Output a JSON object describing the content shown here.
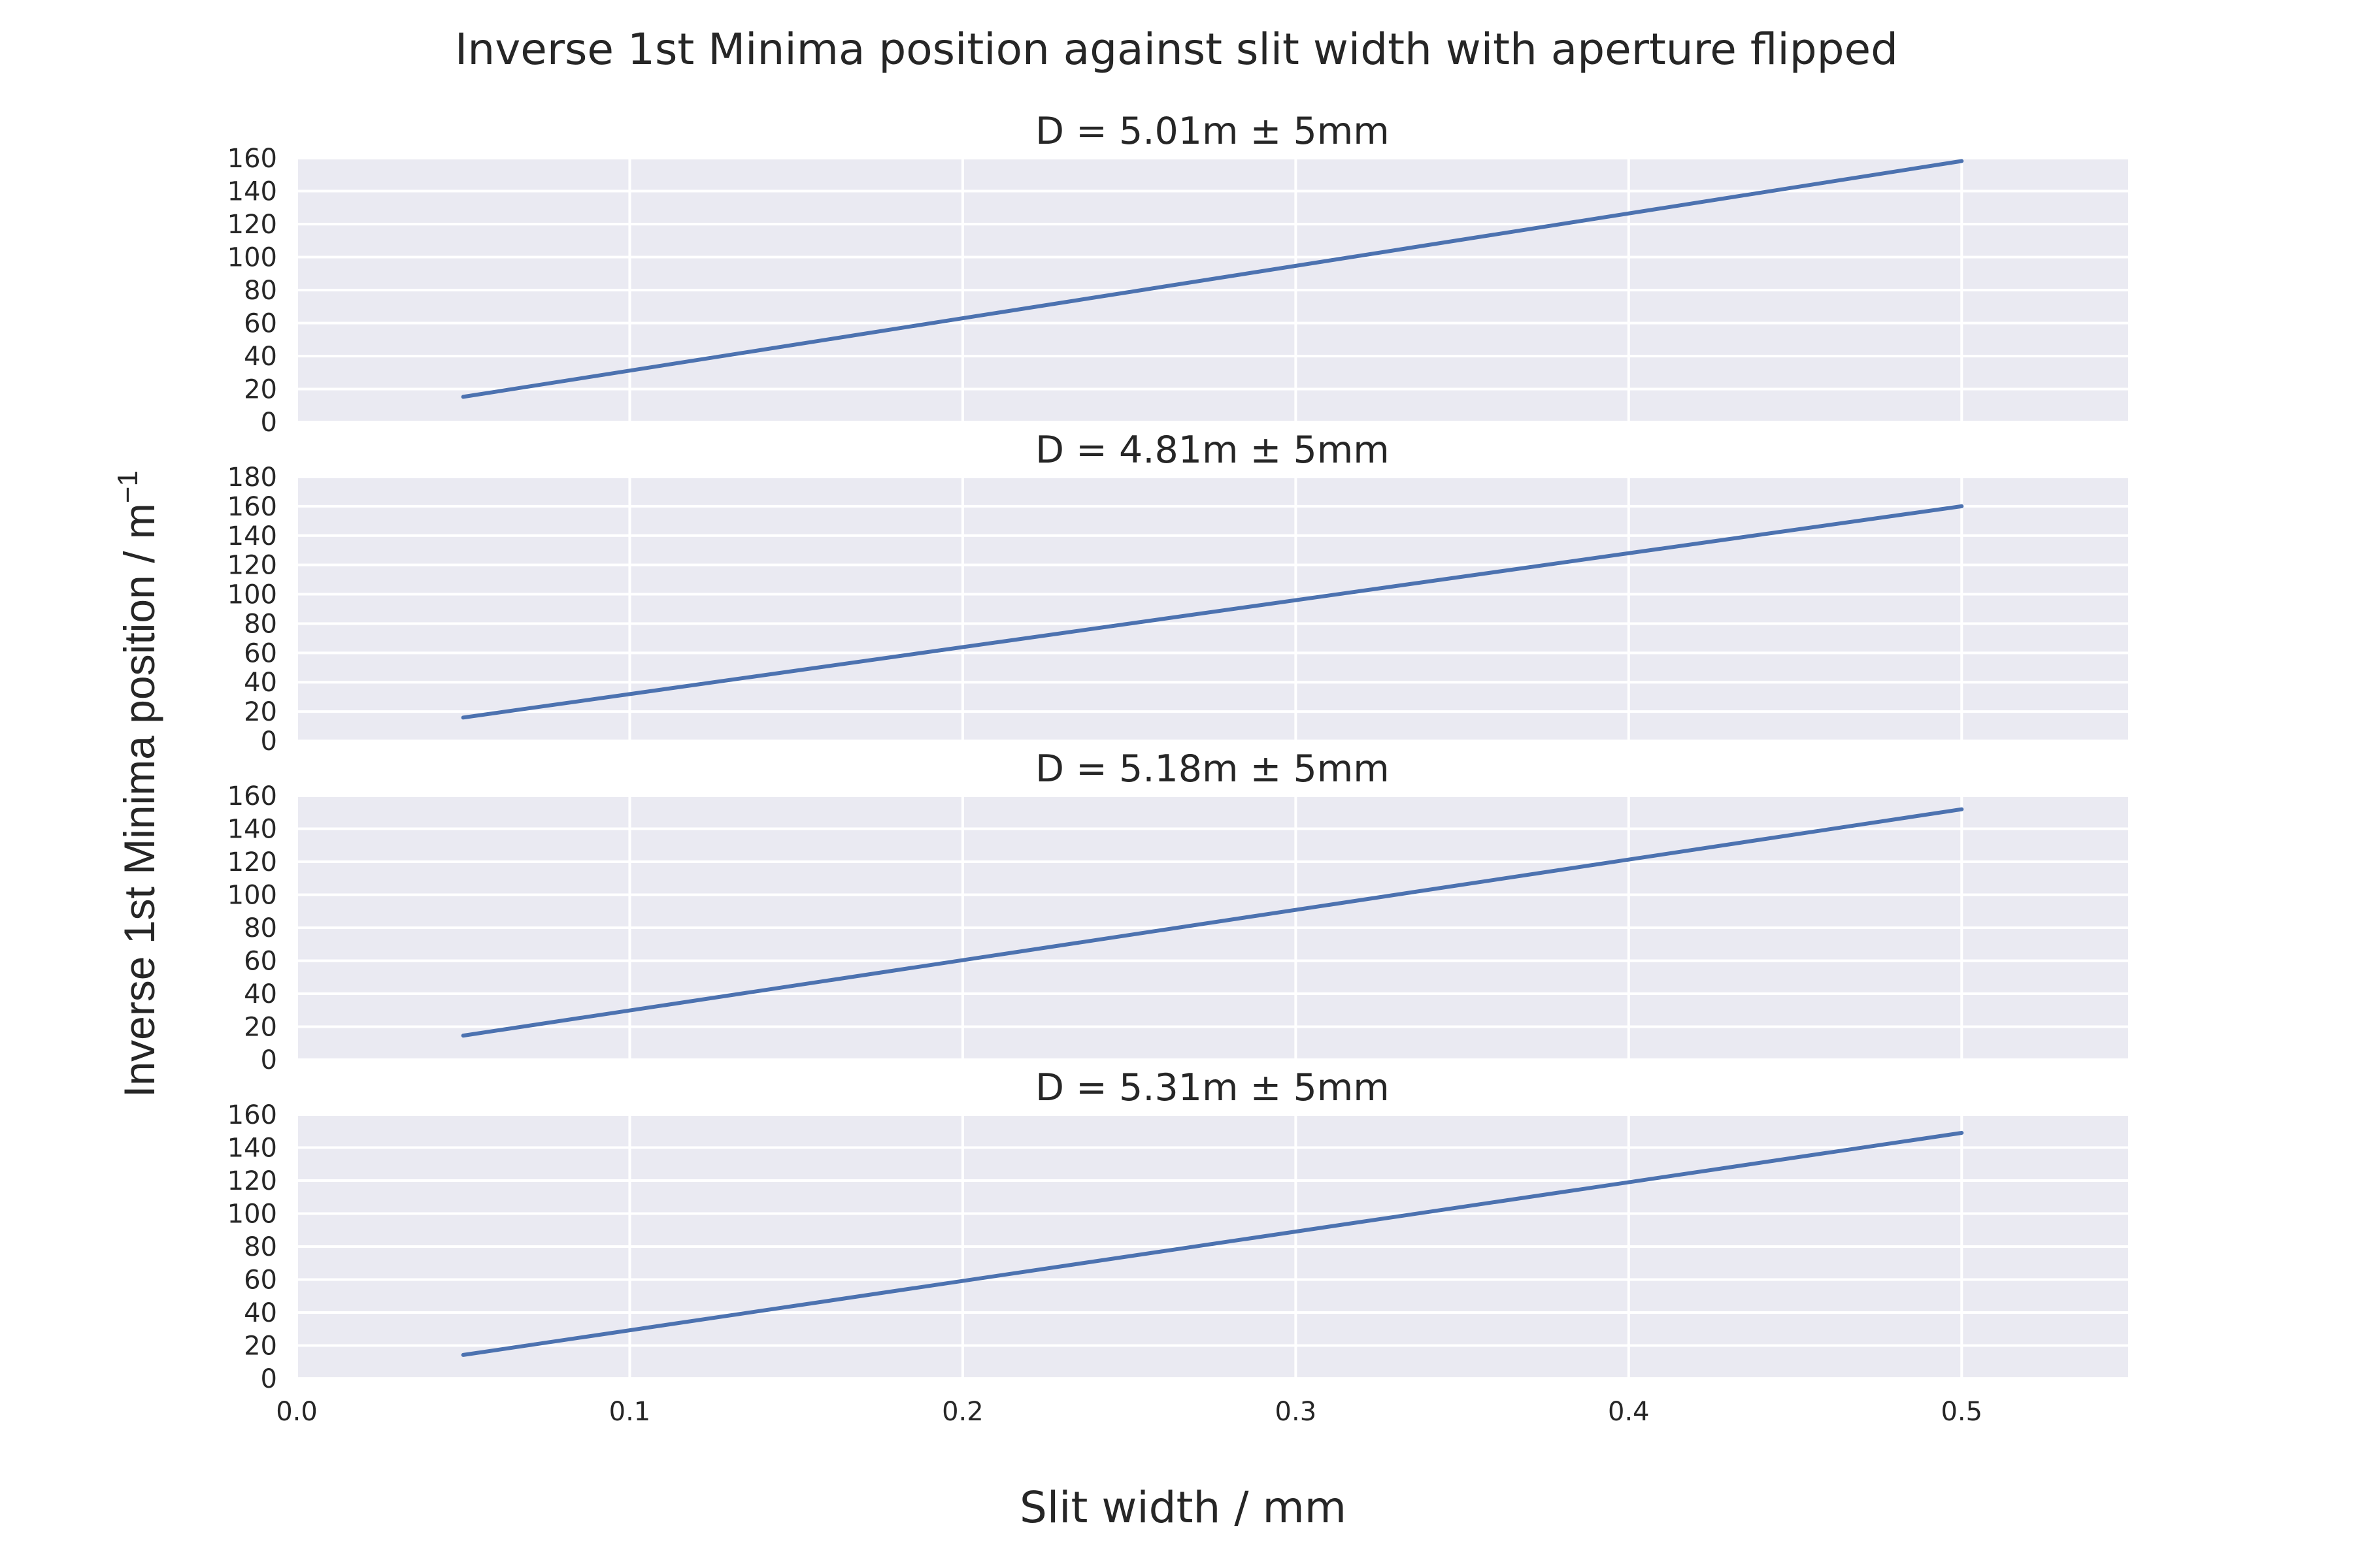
{
  "figure": {
    "title": "Inverse 1st Minima position against slit width with aperture flipped",
    "xlabel": "Slit width / mm",
    "ylabel": "Inverse 1st Minima position / m",
    "ylabel_superscript": "−1"
  },
  "colors": {
    "axes_background": "#EAEAF2",
    "grid": "#FFFFFF",
    "line": "#4C72B0",
    "text": "#262626"
  },
  "chart_data": [
    {
      "type": "line",
      "title": "D = 5.01m ± 5mm",
      "x": [
        0.05,
        0.5
      ],
      "y": [
        15.3,
        158.2
      ],
      "xlim": [
        0.0,
        0.55
      ],
      "ylim": [
        0,
        160
      ],
      "xticks": [
        0.0,
        0.1,
        0.2,
        0.3,
        0.4,
        0.5
      ],
      "yticks": [
        0,
        20,
        40,
        60,
        80,
        100,
        120,
        140,
        160
      ],
      "grid": true
    },
    {
      "type": "line",
      "title": "D = 4.81m ± 5mm",
      "x": [
        0.05,
        0.5
      ],
      "y": [
        15.9,
        160.0
      ],
      "xlim": [
        0.0,
        0.55
      ],
      "ylim": [
        0,
        180
      ],
      "xticks": [
        0.0,
        0.1,
        0.2,
        0.3,
        0.4,
        0.5
      ],
      "yticks": [
        0,
        20,
        40,
        60,
        80,
        100,
        120,
        140,
        160,
        180
      ],
      "grid": true
    },
    {
      "type": "line",
      "title": "D = 5.18m ± 5mm",
      "x": [
        0.05,
        0.5
      ],
      "y": [
        14.6,
        151.8
      ],
      "xlim": [
        0.0,
        0.55
      ],
      "ylim": [
        0,
        160
      ],
      "xticks": [
        0.0,
        0.1,
        0.2,
        0.3,
        0.4,
        0.5
      ],
      "yticks": [
        0,
        20,
        40,
        60,
        80,
        100,
        120,
        140,
        160
      ],
      "grid": true
    },
    {
      "type": "line",
      "title": "D = 5.31m ± 5mm",
      "x": [
        0.05,
        0.5
      ],
      "y": [
        14.3,
        148.9
      ],
      "xlim": [
        0.0,
        0.55
      ],
      "ylim": [
        0,
        160
      ],
      "xticks": [
        0.0,
        0.1,
        0.2,
        0.3,
        0.4,
        0.5
      ],
      "yticks": [
        0,
        20,
        40,
        60,
        80,
        100,
        120,
        140,
        160
      ],
      "grid": true,
      "show_xtick_labels": true
    }
  ]
}
